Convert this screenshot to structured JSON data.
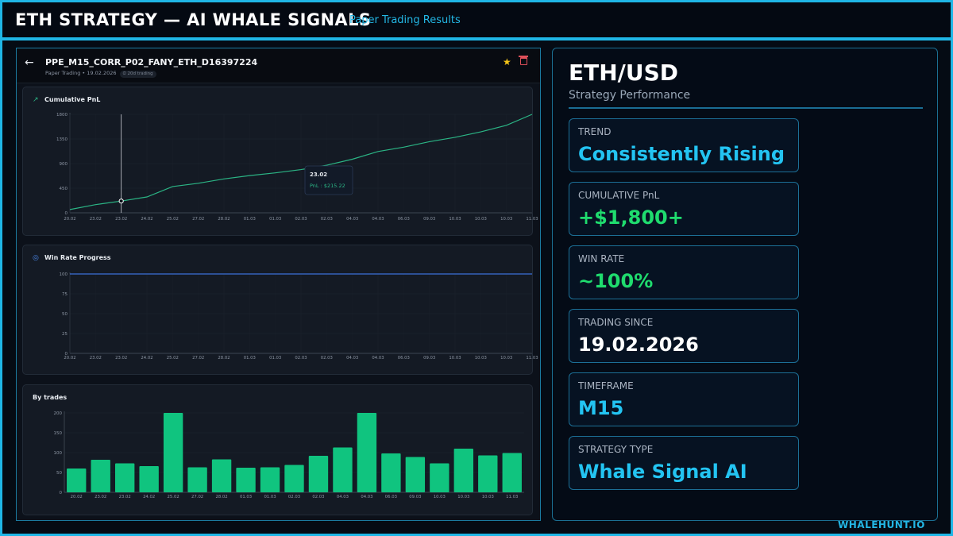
{
  "header": {
    "title": "ETH STRATEGY — AI WHALE SIGNALS",
    "subtitle": "Paper Trading Results"
  },
  "app": {
    "back_icon": "arrow-left-icon",
    "strategy_name": "PPE_M15_CORR_P02_FANY_ETH_D16397224",
    "meta": "Paper Trading • 19.02.2026",
    "badge": "⏲ 20d trading",
    "favorite_icon": "star-icon",
    "delete_icon": "trash-icon"
  },
  "panels": {
    "pnl_title": "Cumulative PnL",
    "winrate_title": "Win Rate Progress",
    "trades_title": "By trades"
  },
  "tooltip": {
    "date": "23.02",
    "text": "PnL : $215.22"
  },
  "chart_data": [
    {
      "type": "line",
      "title": "Cumulative PnL",
      "x": [
        "20.02",
        "23.02",
        "23.02",
        "24.02",
        "25.02",
        "27.02",
        "28.02",
        "01.03",
        "01.03",
        "02.03",
        "02.03",
        "04.03",
        "04.03",
        "06.03",
        "09.03",
        "10.03",
        "10.03",
        "10.03",
        "11.03"
      ],
      "y_ticks": [
        0,
        450,
        900,
        1350,
        1800
      ],
      "ylim": [
        0,
        1800
      ],
      "series": [
        {
          "values": [
            60,
            150,
            215,
            290,
            480,
            540,
            620,
            680,
            730,
            790,
            870,
            980,
            1120,
            1200,
            1300,
            1380,
            1480,
            1600,
            1800
          ]
        }
      ],
      "color": "#2bb585"
    },
    {
      "type": "line",
      "title": "Win Rate Progress",
      "x": [
        "20.02",
        "23.02",
        "23.02",
        "24.02",
        "25.02",
        "27.02",
        "28.02",
        "01.03",
        "01.03",
        "02.03",
        "02.03",
        "04.03",
        "04.03",
        "06.03",
        "09.03",
        "10.03",
        "10.03",
        "10.03",
        "11.03"
      ],
      "y_ticks": [
        0,
        25,
        50,
        75,
        100
      ],
      "ylim": [
        0,
        100
      ],
      "series": [
        {
          "values": [
            100,
            100,
            100,
            100,
            100,
            100,
            100,
            100,
            100,
            100,
            100,
            100,
            100,
            100,
            100,
            100,
            100,
            100,
            100
          ]
        }
      ],
      "color": "#3b6fd8"
    },
    {
      "type": "bar",
      "title": "By trades",
      "categories": [
        "20.02",
        "23.02",
        "23.02",
        "24.02",
        "25.02",
        "27.02",
        "28.02",
        "01.03",
        "01.03",
        "02.03",
        "02.03",
        "04.03",
        "04.03",
        "06.03",
        "09.03",
        "10.03",
        "10.03",
        "10.03",
        "11.03"
      ],
      "values": [
        60,
        82,
        73,
        66,
        200,
        63,
        83,
        62,
        63,
        69,
        92,
        113,
        200,
        98,
        89,
        73,
        110,
        93,
        99
      ],
      "y_ticks": [
        0,
        50,
        100,
        150,
        200
      ],
      "ylim": [
        0,
        200
      ],
      "color": "#10c47f"
    }
  ],
  "summary": {
    "pair": "ETH/USD",
    "subtitle": "Strategy Performance",
    "stats": [
      {
        "label": "TREND",
        "value": "Consistently Rising",
        "color": "#23c4f2"
      },
      {
        "label": "CUMULATIVE PnL",
        "value": "+$1,800+",
        "color": "#1fdc6e"
      },
      {
        "label": "WIN RATE",
        "value": "~100%",
        "color": "#1fdc6e"
      },
      {
        "label": "TRADING SINCE",
        "value": "19.02.2026",
        "color": "#ffffff"
      },
      {
        "label": "TIMEFRAME",
        "value": "M15",
        "color": "#23c4f2"
      },
      {
        "label": "STRATEGY TYPE",
        "value": "Whale Signal AI",
        "color": "#23c4f2"
      }
    ]
  },
  "brand": "WHALEHUNT.IO"
}
